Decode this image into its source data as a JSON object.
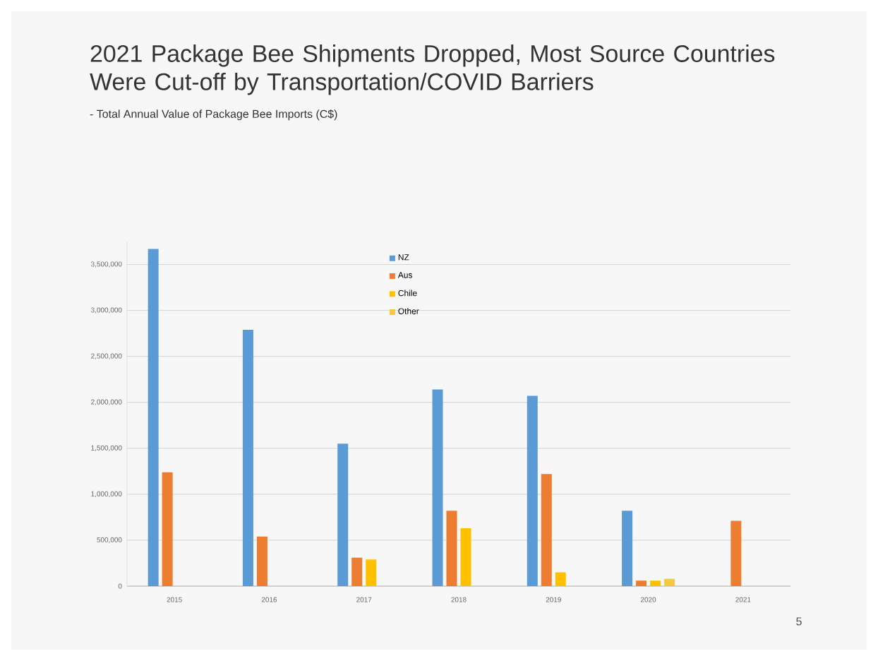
{
  "chart_data": {
    "type": "bar",
    "title": "2021 Package Bee Shipments Dropped, Most Source Countries Were Cut-off by Transportation/COVID Barriers",
    "subtitle": "- Total Annual Value of Package Bee Imports  (C$)",
    "categories": [
      "2015",
      "2016",
      "2017",
      "2018",
      "2019",
      "2020",
      "2021"
    ],
    "series": [
      {
        "name": "NZ",
        "color": "#5b9bd5",
        "values": [
          3670000,
          2790000,
          1550000,
          2140000,
          2070000,
          820000,
          null
        ]
      },
      {
        "name": "Aus",
        "color": "#ed7d31",
        "values": [
          1240000,
          540000,
          310000,
          820000,
          1220000,
          60000,
          710000
        ]
      },
      {
        "name": "Chile",
        "color": "#ffc000",
        "values": [
          null,
          null,
          290000,
          630000,
          150000,
          60000,
          null
        ]
      },
      {
        "name": "Other",
        "color": "#f5c842",
        "values": [
          null,
          null,
          null,
          null,
          null,
          80000,
          null
        ]
      }
    ],
    "ylim": [
      0,
      3750000
    ],
    "yticks": [
      0,
      {
        "value": 500000,
        "label": "500,000"
      },
      {
        "value": 1000000,
        "label": "1,000,000"
      },
      {
        "value": 1500000,
        "label": "1,500,000"
      },
      {
        "value": 2000000,
        "label": "2,000,000"
      },
      {
        "value": 2500000,
        "label": "2,500,000"
      },
      {
        "value": 3000000,
        "label": "3,000,000"
      },
      {
        "value": 3500000,
        "label": "3,500,000"
      }
    ],
    "grid": "y",
    "legend": "top",
    "annotations": [
      "5"
    ]
  }
}
